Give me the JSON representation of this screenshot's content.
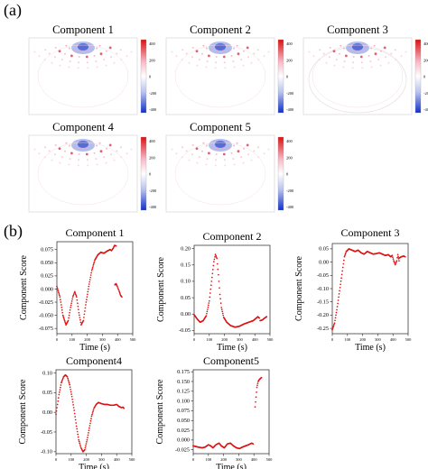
{
  "figure": {
    "panel_a_label": "(a)",
    "panel_b_label": "(b)"
  },
  "heatmaps": [
    {
      "title": "Component 1",
      "colorbar_ticks": [
        "400",
        "200",
        "0",
        "-200",
        "-400"
      ]
    },
    {
      "title": "Component 2",
      "colorbar_ticks": [
        "400",
        "200",
        "0",
        "-200",
        "-400"
      ]
    },
    {
      "title": "Component 3",
      "colorbar_ticks": [
        "400",
        "200",
        "0",
        "-200",
        "-400"
      ]
    },
    {
      "title": "Component 4",
      "colorbar_ticks": [
        "400",
        "200",
        "0",
        "-200",
        "-400"
      ]
    },
    {
      "title": "Component 5",
      "colorbar_ticks": [
        "400",
        "200",
        "0",
        "-200",
        "-400"
      ]
    }
  ],
  "colors": {
    "series": "#dd1111",
    "cmap_top": "#dd1010",
    "cmap_mid": "#ffffff",
    "cmap_bottom": "#1030cc"
  },
  "chart_data": [
    {
      "type": "scatter",
      "title": "Component 1",
      "xlabel": "Time (s)",
      "ylabel": "Component Score",
      "xlim": [
        0,
        500
      ],
      "ylim": [
        -0.085,
        0.09
      ],
      "xticks": [
        0,
        100,
        200,
        300,
        400,
        500
      ],
      "yticks": [
        -0.075,
        -0.05,
        -0.025,
        0.0,
        0.025,
        0.05,
        0.075
      ],
      "ytick_labels": [
        "-0.075",
        "-0.050",
        "-0.025",
        "0.000",
        "0.025",
        "0.050",
        "0.075"
      ],
      "segments": [
        [
          [
            0,
            0.005
          ],
          [
            20,
            -0.015
          ],
          [
            40,
            -0.05
          ],
          [
            60,
            -0.068
          ],
          [
            75,
            -0.06
          ],
          [
            90,
            -0.035
          ],
          [
            105,
            -0.015
          ],
          [
            118,
            -0.005
          ],
          [
            130,
            -0.015
          ],
          [
            145,
            -0.045
          ],
          [
            160,
            -0.068
          ],
          [
            175,
            -0.06
          ],
          [
            190,
            -0.03
          ],
          [
            210,
            0.005
          ],
          [
            230,
            0.035
          ],
          [
            250,
            0.055
          ],
          [
            270,
            0.065
          ],
          [
            290,
            0.07
          ],
          [
            310,
            0.068
          ],
          [
            330,
            0.072
          ],
          [
            350,
            0.075
          ],
          [
            360,
            0.073
          ],
          [
            372,
            0.078
          ],
          [
            380,
            0.083
          ],
          [
            390,
            0.082
          ]
        ],
        [
          [
            382,
            0.008
          ],
          [
            390,
            0.01
          ],
          [
            398,
            0.005
          ],
          [
            405,
            0.0
          ],
          [
            412,
            -0.005
          ],
          [
            420,
            -0.012
          ],
          [
            428,
            -0.015
          ]
        ]
      ]
    },
    {
      "type": "scatter",
      "title": "Component 2",
      "xlabel": "Time (s)",
      "ylabel": "Component Score",
      "xlim": [
        0,
        500
      ],
      "ylim": [
        -0.06,
        0.21
      ],
      "xticks": [
        0,
        100,
        200,
        300,
        400,
        500
      ],
      "yticks": [
        -0.05,
        0.0,
        0.05,
        0.1,
        0.15,
        0.2
      ],
      "ytick_labels": [
        "-0.05",
        "0.00",
        "0.05",
        "0.10",
        "0.15",
        "0.20"
      ],
      "segments": [
        [
          [
            0,
            -0.002
          ],
          [
            20,
            -0.015
          ],
          [
            40,
            -0.025
          ],
          [
            60,
            -0.02
          ],
          [
            80,
            -0.005
          ],
          [
            100,
            0.04
          ],
          [
            115,
            0.1
          ],
          [
            130,
            0.16
          ],
          [
            140,
            0.182
          ],
          [
            150,
            0.17
          ],
          [
            160,
            0.12
          ],
          [
            170,
            0.06
          ],
          [
            180,
            0.02
          ],
          [
            195,
            -0.01
          ],
          [
            215,
            -0.025
          ],
          [
            240,
            -0.035
          ],
          [
            270,
            -0.04
          ],
          [
            300,
            -0.037
          ],
          [
            330,
            -0.03
          ],
          [
            360,
            -0.025
          ],
          [
            390,
            -0.02
          ],
          [
            410,
            -0.012
          ],
          [
            420,
            -0.008
          ],
          [
            430,
            -0.012
          ]
        ],
        [
          [
            435,
            -0.02
          ],
          [
            450,
            -0.018
          ],
          [
            465,
            -0.012
          ],
          [
            478,
            -0.008
          ]
        ]
      ]
    },
    {
      "type": "scatter",
      "title": "Component 3",
      "xlabel": "Time (s)",
      "ylabel": "Component Score",
      "xlim": [
        0,
        500
      ],
      "ylim": [
        -0.27,
        0.07
      ],
      "xticks": [
        0,
        100,
        200,
        300,
        400,
        500
      ],
      "yticks": [
        -0.25,
        -0.2,
        -0.15,
        -0.1,
        -0.05,
        0.0,
        0.05
      ],
      "ytick_labels": [
        "-0.25",
        "-0.20",
        "-0.15",
        "-0.10",
        "-0.05",
        "0.00",
        "0.05"
      ],
      "segments": [
        [
          [
            0,
            -0.255
          ],
          [
            15,
            -0.23
          ],
          [
            30,
            -0.18
          ],
          [
            45,
            -0.12
          ],
          [
            60,
            -0.06
          ],
          [
            70,
            -0.02
          ],
          [
            80,
            0.02
          ],
          [
            92,
            0.04
          ],
          [
            110,
            0.05
          ],
          [
            130,
            0.045
          ],
          [
            150,
            0.04
          ],
          [
            170,
            0.045
          ],
          [
            190,
            0.035
          ],
          [
            210,
            0.03
          ],
          [
            230,
            0.04
          ],
          [
            250,
            0.035
          ],
          [
            270,
            0.03
          ],
          [
            290,
            0.032
          ],
          [
            310,
            0.035
          ],
          [
            330,
            0.03
          ],
          [
            350,
            0.025
          ],
          [
            370,
            0.028
          ],
          [
            385,
            0.02
          ],
          [
            395,
            0.025
          ],
          [
            405,
            0.005
          ],
          [
            415,
            -0.01
          ],
          [
            425,
            0.005
          ],
          [
            432,
            0.028
          ],
          [
            440,
            0.005
          ]
        ],
        [
          [
            440,
            0.015
          ],
          [
            455,
            0.02
          ],
          [
            470,
            0.023
          ],
          [
            480,
            0.02
          ]
        ]
      ]
    },
    {
      "type": "scatter",
      "title": "Component4",
      "xlabel": "Time (s)",
      "ylabel": "Component Score",
      "xlim": [
        0,
        500
      ],
      "ylim": [
        -0.105,
        0.108
      ],
      "xticks": [
        0,
        100,
        200,
        300,
        400,
        500
      ],
      "yticks": [
        -0.1,
        -0.05,
        0.0,
        0.05,
        0.1
      ],
      "ytick_labels": [
        "-0.10",
        "-0.05",
        "0.00",
        "0.05",
        "0.10"
      ],
      "segments": [
        [
          [
            0,
            -0.005
          ],
          [
            10,
            0.02
          ],
          [
            20,
            0.045
          ],
          [
            35,
            0.075
          ],
          [
            50,
            0.09
          ],
          [
            62,
            0.095
          ],
          [
            75,
            0.09
          ],
          [
            90,
            0.07
          ],
          [
            105,
            0.04
          ],
          [
            120,
            0.005
          ],
          [
            135,
            -0.035
          ],
          [
            150,
            -0.07
          ],
          [
            165,
            -0.09
          ],
          [
            178,
            -0.1
          ],
          [
            190,
            -0.095
          ],
          [
            205,
            -0.07
          ],
          [
            220,
            -0.04
          ],
          [
            235,
            -0.01
          ],
          [
            250,
            0.01
          ],
          [
            265,
            0.02
          ],
          [
            280,
            0.025
          ],
          [
            300,
            0.022
          ],
          [
            320,
            0.02
          ],
          [
            340,
            0.02
          ],
          [
            360,
            0.018
          ],
          [
            380,
            0.018
          ],
          [
            400,
            0.02
          ],
          [
            415,
            0.015
          ],
          [
            430,
            0.012
          ],
          [
            442,
            0.013
          ],
          [
            448,
            0.01
          ]
        ]
      ]
    },
    {
      "type": "scatter",
      "title": "Component5",
      "xlabel": "Time (s)",
      "ylabel": "Component Score",
      "xlim": [
        0,
        500
      ],
      "ylim": [
        -0.035,
        0.18
      ],
      "xticks": [
        0,
        100,
        200,
        300,
        400,
        500
      ],
      "yticks": [
        -0.025,
        0.0,
        0.025,
        0.05,
        0.075,
        0.1,
        0.125,
        0.15,
        0.175
      ],
      "ytick_labels": [
        "-0.025",
        "0.000",
        "0.025",
        "0.050",
        "0.075",
        "0.100",
        "0.125",
        "0.150",
        "0.175"
      ],
      "segments": [
        [
          [
            0,
            -0.015
          ],
          [
            30,
            -0.018
          ],
          [
            60,
            -0.02
          ],
          [
            80,
            -0.018
          ],
          [
            100,
            -0.012
          ],
          [
            115,
            -0.015
          ],
          [
            130,
            -0.02
          ],
          [
            150,
            -0.012
          ],
          [
            170,
            -0.008
          ],
          [
            185,
            -0.015
          ],
          [
            205,
            -0.02
          ],
          [
            225,
            -0.01
          ],
          [
            245,
            -0.008
          ],
          [
            265,
            -0.015
          ],
          [
            285,
            -0.02
          ],
          [
            305,
            -0.022
          ],
          [
            325,
            -0.018
          ],
          [
            345,
            -0.015
          ],
          [
            365,
            -0.012
          ],
          [
            385,
            -0.008
          ],
          [
            395,
            -0.01
          ]
        ],
        [
          [
            408,
            0.085
          ],
          [
            414,
            0.11
          ],
          [
            420,
            0.135
          ],
          [
            428,
            0.15
          ],
          [
            436,
            0.155
          ],
          [
            444,
            0.158
          ],
          [
            450,
            0.16
          ]
        ]
      ]
    }
  ]
}
